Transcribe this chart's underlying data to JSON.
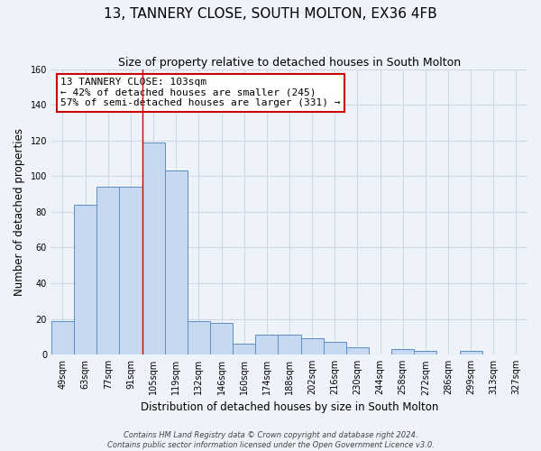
{
  "title": "13, TANNERY CLOSE, SOUTH MOLTON, EX36 4FB",
  "subtitle": "Size of property relative to detached houses in South Molton",
  "xlabel": "Distribution of detached houses by size in South Molton",
  "ylabel": "Number of detached properties",
  "footer_line1": "Contains HM Land Registry data © Crown copyright and database right 2024.",
  "footer_line2": "Contains public sector information licensed under the Open Government Licence v3.0.",
  "bin_labels": [
    "49sqm",
    "63sqm",
    "77sqm",
    "91sqm",
    "105sqm",
    "119sqm",
    "132sqm",
    "146sqm",
    "160sqm",
    "174sqm",
    "188sqm",
    "202sqm",
    "216sqm",
    "230sqm",
    "244sqm",
    "258sqm",
    "272sqm",
    "286sqm",
    "299sqm",
    "313sqm",
    "327sqm"
  ],
  "bar_values": [
    19,
    84,
    94,
    94,
    119,
    103,
    19,
    18,
    6,
    11,
    11,
    9,
    7,
    4,
    0,
    3,
    2,
    0,
    2,
    0,
    0
  ],
  "bar_color": "#c6d9f0",
  "bar_edge_color": "#5b8fc9",
  "annotation_title": "13 TANNERY CLOSE: 103sqm",
  "annotation_line1": "← 42% of detached houses are smaller (245)",
  "annotation_line2": "57% of semi-detached houses are larger (331) →",
  "vline_bin_index": 4,
  "ylim": [
    0,
    160
  ],
  "yticks": [
    0,
    20,
    40,
    60,
    80,
    100,
    120,
    140,
    160
  ],
  "background_color": "#eef2f9",
  "grid_color": "#d0d8e8",
  "annotation_box_color": "#ffffff",
  "annotation_box_edge": "#cc0000",
  "vline_color": "#cc0000",
  "title_fontsize": 11,
  "subtitle_fontsize": 9,
  "axis_label_fontsize": 8.5,
  "tick_fontsize": 7,
  "annotation_fontsize": 8,
  "footer_fontsize": 6
}
